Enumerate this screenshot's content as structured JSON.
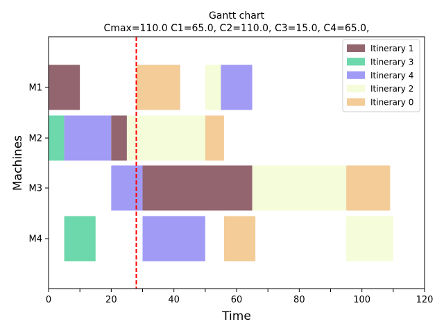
{
  "chart_data": {
    "type": "gantt",
    "title": "Gantt chart",
    "subtitle": "Cmax=110.0 C1=65.0, C2=110.0, C3=15.0, C4=65.0,",
    "xlabel": "Time",
    "ylabel": "Machines",
    "xlim": [
      0,
      120
    ],
    "x_ticks": [
      0,
      20,
      40,
      60,
      80,
      100,
      120
    ],
    "x_minor_ticks": [
      10,
      30,
      50,
      70,
      90,
      110
    ],
    "machines": [
      "M1",
      "M2",
      "M3",
      "M4"
    ],
    "grid": false,
    "legend_position": "top-right",
    "marker_line": {
      "x": 28,
      "color": "#ff0000",
      "style": "dashed"
    },
    "series": [
      {
        "name": "Itinerary 1",
        "color": "#93656f"
      },
      {
        "name": "Itinerary 3",
        "color": "#6dd8ab"
      },
      {
        "name": "Itinerary 4",
        "color": "#a19bf5"
      },
      {
        "name": "Itinerary 2",
        "color": "#f4fcd9"
      },
      {
        "name": "Itinerary 0",
        "color": "#f3cc98"
      }
    ],
    "tasks": [
      {
        "machine": "M1",
        "series": "Itinerary 1",
        "start": 0,
        "end": 10
      },
      {
        "machine": "M1",
        "series": "Itinerary 0",
        "start": 28,
        "end": 42
      },
      {
        "machine": "M1",
        "series": "Itinerary 2",
        "start": 50,
        "end": 55
      },
      {
        "machine": "M1",
        "series": "Itinerary 4",
        "start": 55,
        "end": 65
      },
      {
        "machine": "M2",
        "series": "Itinerary 3",
        "start": 0,
        "end": 5
      },
      {
        "machine": "M2",
        "series": "Itinerary 4",
        "start": 5,
        "end": 20
      },
      {
        "machine": "M2",
        "series": "Itinerary 1",
        "start": 20,
        "end": 25
      },
      {
        "machine": "M2",
        "series": "Itinerary 2",
        "start": 25,
        "end": 50
      },
      {
        "machine": "M2",
        "series": "Itinerary 0",
        "start": 50,
        "end": 56
      },
      {
        "machine": "M3",
        "series": "Itinerary 4",
        "start": 20,
        "end": 30
      },
      {
        "machine": "M3",
        "series": "Itinerary 1",
        "start": 30,
        "end": 65
      },
      {
        "machine": "M3",
        "series": "Itinerary 2",
        "start": 65,
        "end": 95
      },
      {
        "machine": "M3",
        "series": "Itinerary 0",
        "start": 95,
        "end": 109
      },
      {
        "machine": "M4",
        "series": "Itinerary 3",
        "start": 5,
        "end": 15
      },
      {
        "machine": "M4",
        "series": "Itinerary 4",
        "start": 30,
        "end": 50
      },
      {
        "machine": "M4",
        "series": "Itinerary 0",
        "start": 56,
        "end": 66
      },
      {
        "machine": "M4",
        "series": "Itinerary 2",
        "start": 95,
        "end": 110
      }
    ]
  }
}
